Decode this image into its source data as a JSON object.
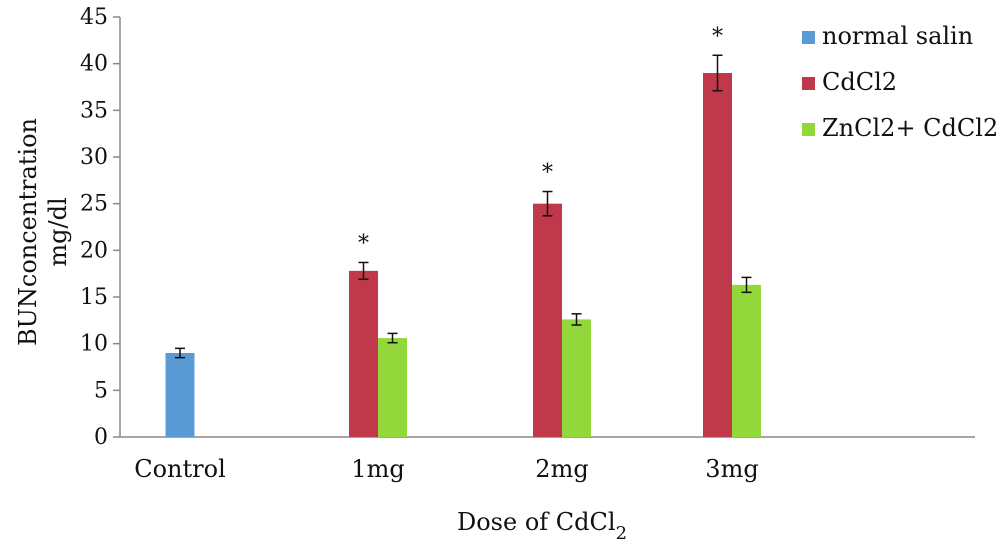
{
  "chart_data": {
    "type": "bar",
    "title": "",
    "xlabel": "Dose of CdCl",
    "xlabel_subscript": "2",
    "ylabel_line1": "BUNconcentration",
    "ylabel_line2": "mg/dl",
    "ylim": [
      0,
      45
    ],
    "yticks": [
      "0",
      "5",
      "10",
      "15",
      "20",
      "25",
      "30",
      "35",
      "40",
      "45"
    ],
    "categories": [
      "Control",
      "1mg",
      "2mg",
      "3mg"
    ],
    "series": [
      {
        "name": "normal salin",
        "color": "#5b9bd5",
        "values": [
          9.0,
          null,
          null,
          null
        ],
        "errors": [
          0.5,
          null,
          null,
          null
        ]
      },
      {
        "name": "CdCl2",
        "color": "#c0394b",
        "values": [
          null,
          17.8,
          25.0,
          39.0
        ],
        "errors": [
          null,
          0.9,
          1.3,
          1.9
        ]
      },
      {
        "name": "ZnCl2+ CdCl2",
        "color": "#92d83a",
        "values": [
          null,
          10.6,
          12.6,
          16.3
        ],
        "errors": [
          null,
          0.5,
          0.6,
          0.8
        ]
      }
    ],
    "annotations": [
      {
        "category": "1mg",
        "series": "CdCl2",
        "text": "*"
      },
      {
        "category": "2mg",
        "series": "CdCl2",
        "text": "*"
      },
      {
        "category": "3mg",
        "series": "CdCl2",
        "text": "*"
      }
    ],
    "legend_position": "right",
    "grid": false
  }
}
